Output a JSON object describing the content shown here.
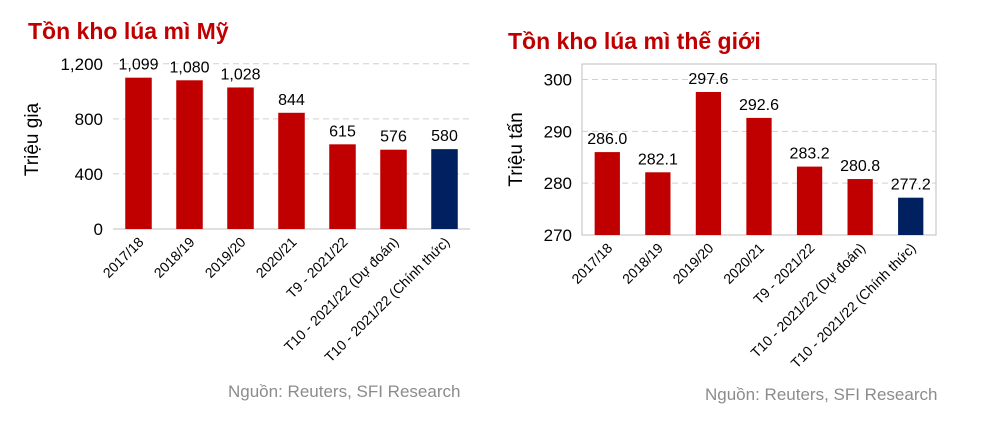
{
  "chart_data": [
    {
      "type": "bar",
      "title": "Tồn kho lúa mì Mỹ",
      "ylabel": "Triệu giạ",
      "xlabel": "",
      "categories": [
        "2017/18",
        "2018/19",
        "2019/20",
        "2020/21",
        "T9 - 2021/22",
        "T10 - 2021/22 (Dự đoán)",
        "T10 - 2021/22 (Chính thức)"
      ],
      "values": [
        1099,
        1080,
        1028,
        844,
        615,
        576,
        580
      ],
      "data_labels": [
        "1,099",
        "1,080",
        "1,028",
        "844",
        "615",
        "576",
        "580"
      ],
      "ylim": [
        0,
        1300
      ],
      "yticks": [
        0,
        400,
        800,
        1200
      ],
      "ytick_labels": [
        "0",
        "400",
        "800",
        "1,200"
      ],
      "grid": true,
      "bar_colors": [
        "#c00000",
        "#c00000",
        "#c00000",
        "#c00000",
        "#c00000",
        "#c00000",
        "#002060"
      ],
      "source": "Nguồn: Reuters, SFI Research"
    },
    {
      "type": "bar",
      "title": "Tồn kho lúa mì thế giới",
      "ylabel": "Triệu tấn",
      "xlabel": "",
      "categories": [
        "2017/18",
        "2018/19",
        "2019/20",
        "2020/21",
        "T9 - 2021/22",
        "T10 - 2021/22 (Dự đoán)",
        "T10 - 2021/22 (Chính thức)"
      ],
      "values": [
        286.0,
        282.1,
        297.6,
        292.6,
        283.2,
        280.8,
        277.2
      ],
      "data_labels": [
        "286.0",
        "282.1",
        "297.6",
        "292.6",
        "283.2",
        "280.8",
        "277.2"
      ],
      "ylim": [
        270,
        303
      ],
      "yticks": [
        270,
        280,
        290,
        300
      ],
      "ytick_labels": [
        "270",
        "280",
        "290",
        "300"
      ],
      "grid": true,
      "bar_colors": [
        "#c00000",
        "#c00000",
        "#c00000",
        "#c00000",
        "#c00000",
        "#c00000",
        "#002060"
      ],
      "source": "Nguồn: Reuters, SFI Research"
    }
  ]
}
